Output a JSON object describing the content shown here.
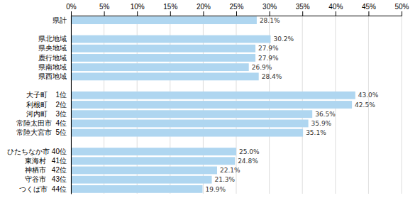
{
  "chart_data": {
    "type": "bar",
    "orientation": "horizontal",
    "categories": [
      "県計",
      null,
      "県北地域",
      "県央地域",
      "鹿行地域",
      "県南地域",
      "県西地域",
      null,
      "大子町    1位",
      "利根町    2位",
      "河内町    3位",
      "常陸太田市  4位",
      "常陸大宮市  5位",
      null,
      "ひたちなか市 40位",
      "東海村   41位",
      "神栖市   42位",
      "守谷市   43位",
      "つくば市  44位"
    ],
    "values": [
      28.1,
      null,
      30.2,
      27.9,
      27.9,
      26.9,
      28.4,
      null,
      43.0,
      42.5,
      36.5,
      35.9,
      35.1,
      null,
      25.0,
      24.8,
      22.1,
      21.3,
      19.9
    ],
    "value_labels": [
      "28.1%",
      null,
      "30.2%",
      "27.9%",
      "27.9%",
      "26.9%",
      "28.4%",
      null,
      "43.0%",
      "42.5%",
      "36.5%",
      "35.9%",
      "35.1%",
      null,
      "25.0%",
      "24.8%",
      "22.1%",
      "21.3%",
      "19.9%"
    ],
    "color": "#afd6f0",
    "xlim": [
      0,
      50
    ],
    "xticks": [
      {
        "value": 0,
        "label": "0%"
      },
      {
        "value": 5,
        "label": "5%"
      },
      {
        "value": 10,
        "label": "10%"
      },
      {
        "value": 15,
        "label": "15%"
      },
      {
        "value": 20,
        "label": "20%"
      },
      {
        "value": 25,
        "label": "25%"
      },
      {
        "value": 30,
        "label": "30%"
      },
      {
        "value": 35,
        "label": "35%"
      },
      {
        "value": 40,
        "label": "40%"
      },
      {
        "value": 45,
        "label": "45%"
      },
      {
        "value": 50,
        "label": "50%"
      }
    ],
    "grid": true,
    "data_labels": true
  }
}
